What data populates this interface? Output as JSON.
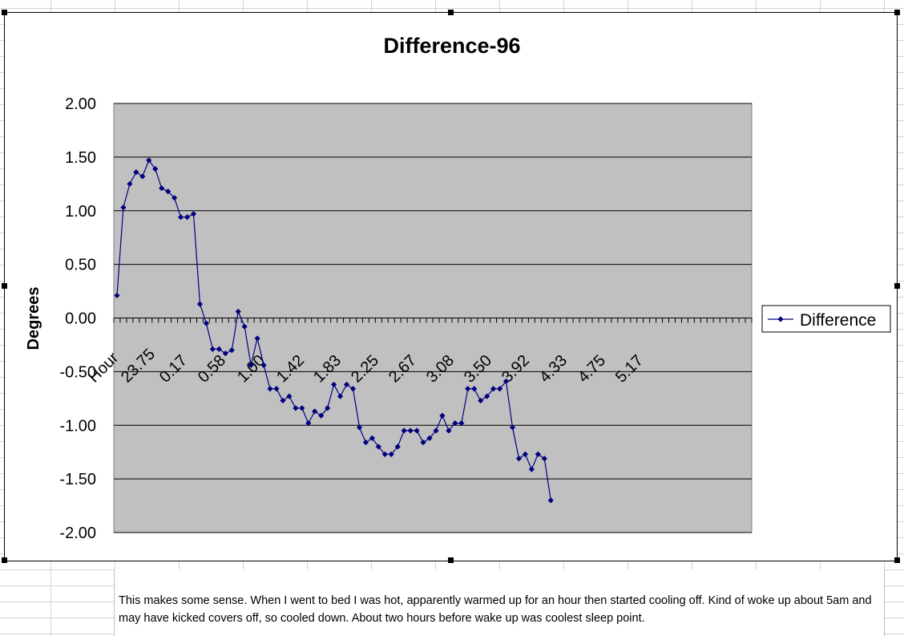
{
  "chart_data": {
    "type": "line",
    "title": "Difference-96",
    "xlabel": "",
    "ylabel": "Degrees",
    "ylim": [
      -2.0,
      2.0
    ],
    "y_ticks": [
      "2.00",
      "1.50",
      "1.00",
      "0.50",
      "0.00",
      "-0.50",
      "-1.00",
      "-1.50",
      "-2.00"
    ],
    "x_tick_labels": [
      "Hour",
      "23.75",
      "0.17",
      "0.58",
      "1.00",
      "1.42",
      "1.83",
      "2.25",
      "2.67",
      "3.08",
      "3.50",
      "3.92",
      "4.33",
      "4.75",
      "5.17"
    ],
    "legend": "right",
    "grid": true,
    "color": "#000080",
    "series": [
      {
        "name": "Difference",
        "values": [
          0.21,
          1.03,
          1.25,
          1.36,
          1.32,
          1.47,
          1.39,
          1.21,
          1.18,
          1.12,
          0.94,
          0.94,
          0.97,
          0.13,
          -0.05,
          -0.29,
          -0.29,
          -0.33,
          -0.3,
          0.06,
          -0.08,
          -0.44,
          -0.19,
          -0.44,
          -0.66,
          -0.66,
          -0.77,
          -0.73,
          -0.84,
          -0.84,
          -0.98,
          -0.87,
          -0.91,
          -0.84,
          -0.62,
          -0.73,
          -0.62,
          -0.66,
          -1.02,
          -1.16,
          -1.12,
          -1.2,
          -1.27,
          -1.27,
          -1.2,
          -1.05,
          -1.05,
          -1.05,
          -1.16,
          -1.12,
          -1.05,
          -0.91,
          -1.05,
          -0.98,
          -0.98,
          -0.66,
          -0.66,
          -0.77,
          -0.73,
          -0.66,
          -0.66,
          -0.59,
          -1.02,
          -1.31,
          -1.27,
          -1.41,
          -1.27,
          -1.31,
          -1.7
        ]
      }
    ]
  },
  "note": {
    "text": "This makes some sense. When I went to bed I was hot, apparently warmed up for an hour then started cooling off. Kind of woke up about 5am and may have kicked covers off, so cooled down. About two hours before wake up was coolest sleep point."
  }
}
